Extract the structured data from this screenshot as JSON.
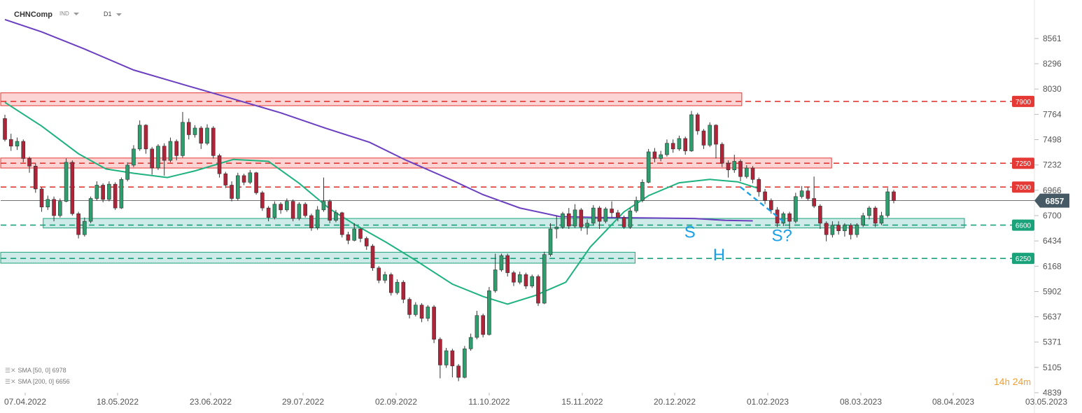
{
  "header": {
    "symbol": "CHNComp",
    "market": "IND",
    "timeframe": "D1"
  },
  "indicators": [
    {
      "label": "SMA [50, 0]",
      "value": "6978",
      "color": "#1eb27f"
    },
    {
      "label": "SMA [200, 0]",
      "value": "6656",
      "color": "#6a3fc0"
    }
  ],
  "timer": {
    "hours": "14",
    "hours_unit": "h",
    "minutes": "24",
    "minutes_unit": "m"
  },
  "chart_data": {
    "type": "candlestick",
    "y_ticks": [
      8561,
      8296,
      8030,
      7764,
      7498,
      7232,
      6966,
      6700,
      6434,
      6168,
      5902,
      5637,
      5371,
      5105,
      4839
    ],
    "x_ticks": [
      "07.04.2022",
      "18.05.2022",
      "23.06.2022",
      "29.07.2022",
      "02.09.2022",
      "11.10.2022",
      "15.11.2022",
      "20.12.2022",
      "01.02.2023",
      "08.03.2023",
      "08.04.2023",
      "03.05.2023"
    ],
    "last_price": {
      "value": "6857",
      "color": "#455a64"
    },
    "resistance_levels": [
      {
        "label": "7900",
        "value": 7900,
        "color": "#e53935"
      },
      {
        "label": "7250",
        "value": 7250,
        "color": "#e53935"
      },
      {
        "label": "7000",
        "value": 7000,
        "color": "#e53935"
      }
    ],
    "support_levels": [
      {
        "label": "6600",
        "value": 6600,
        "color": "#1aa37a"
      },
      {
        "label": "6250",
        "value": 6250,
        "color": "#1aa37a"
      }
    ],
    "zones": [
      {
        "kind": "resistance",
        "y_from": 7855,
        "y_to": 7990,
        "date_from": "07.04.2022",
        "date_to": "20.01.2023"
      },
      {
        "kind": "resistance",
        "y_from": 7200,
        "y_to": 7305,
        "date_from": "07.04.2022",
        "date_to": "25.02.2023"
      },
      {
        "kind": "support",
        "y_from": 6570,
        "y_to": 6670,
        "date_from": "15.04.2022",
        "date_to": "11.04.2023"
      },
      {
        "kind": "support",
        "y_from": 6200,
        "y_to": 6315,
        "date_from": "07.04.2022",
        "date_to": "05.12.2022"
      }
    ],
    "pattern_labels": [
      {
        "text": "S",
        "date": "20.02.2023",
        "value": 6470,
        "color": "#1aa0e8"
      },
      {
        "text": "H",
        "date": "05.03.2023",
        "value": 6230,
        "color": "#1aa0e8"
      },
      {
        "text": "S?",
        "date": "03.04.2023",
        "value": 6430,
        "color": "#1aa0e8"
      }
    ],
    "projection": {
      "from": {
        "date": "15.03.2023",
        "value": 7000
      },
      "to": {
        "date": "04.04.2023",
        "value": 6640
      },
      "color": "#1aa0e8"
    },
    "sma50": [
      [
        "07.04.2022",
        7890
      ],
      [
        "25.04.2022",
        7640
      ],
      [
        "12.05.2022",
        7350
      ],
      [
        "25.05.2022",
        7190
      ],
      [
        "07.06.2022",
        7145
      ],
      [
        "22.06.2022",
        7100
      ],
      [
        "05.07.2022",
        7170
      ],
      [
        "22.07.2022",
        7290
      ],
      [
        "08.08.2022",
        7270
      ],
      [
        "22.08.2022",
        7040
      ],
      [
        "05.09.2022",
        6770
      ],
      [
        "16.09.2022",
        6600
      ],
      [
        "30.09.2022",
        6420
      ],
      [
        "14.10.2022",
        6230
      ],
      [
        "01.11.2022",
        5980
      ],
      [
        "15.11.2022",
        5850
      ],
      [
        "25.11.2022",
        5770
      ],
      [
        "08.12.2022",
        5860
      ],
      [
        "22.12.2022",
        6000
      ],
      [
        "05.01.2023",
        6370
      ],
      [
        "20.01.2023",
        6740
      ],
      [
        "01.02.2023",
        6910
      ],
      [
        "15.02.2023",
        7045
      ],
      [
        "01.03.2023",
        7080
      ],
      [
        "14.03.2023",
        7055
      ],
      [
        "23.03.2023",
        6985
      ]
    ],
    "sma200": [
      [
        "07.04.2022",
        8760
      ],
      [
        "25.04.2022",
        8630
      ],
      [
        "16.05.2022",
        8450
      ],
      [
        "07.06.2022",
        8230
      ],
      [
        "30.06.2022",
        8070
      ],
      [
        "20.07.2022",
        7940
      ],
      [
        "12.08.2022",
        7780
      ],
      [
        "02.09.2022",
        7620
      ],
      [
        "22.09.2022",
        7470
      ],
      [
        "11.10.2022",
        7280
      ],
      [
        "01.11.2022",
        7070
      ],
      [
        "15.11.2022",
        6920
      ],
      [
        "01.12.2022",
        6780
      ],
      [
        "20.12.2022",
        6690
      ],
      [
        "10.01.2023",
        6680
      ],
      [
        "01.02.2023",
        6675
      ],
      [
        "22.02.2023",
        6670
      ],
      [
        "08.03.2023",
        6650
      ],
      [
        "21.03.2023",
        6645
      ]
    ],
    "candles": [
      [
        "07.04.2022",
        7720,
        7500,
        7760,
        7480
      ],
      [
        "11.04.2022",
        7500,
        7430,
        7560,
        7380
      ],
      [
        "13.04.2022",
        7430,
        7480,
        7520,
        7390
      ],
      [
        "15.04.2022",
        7480,
        7300,
        7500,
        7260
      ],
      [
        "19.04.2022",
        7300,
        7220,
        7320,
        7150
      ],
      [
        "21.04.2022",
        7220,
        6980,
        7250,
        6940
      ],
      [
        "25.04.2022",
        6980,
        6790,
        7000,
        6740
      ],
      [
        "27.04.2022",
        6790,
        6870,
        6910,
        6760
      ],
      [
        "29.04.2022",
        6870,
        6700,
        6900,
        6640
      ],
      [
        "04.05.2022",
        6700,
        6850,
        6880,
        6680
      ],
      [
        "06.05.2022",
        6850,
        7260,
        7300,
        6840
      ],
      [
        "10.05.2022",
        7260,
        6720,
        7280,
        6700
      ],
      [
        "12.05.2022",
        6720,
        6500,
        6740,
        6460
      ],
      [
        "16.05.2022",
        6500,
        6640,
        6680,
        6480
      ],
      [
        "18.05.2022",
        6640,
        6880,
        6900,
        6620
      ],
      [
        "20.05.2022",
        6880,
        7020,
        7060,
        6860
      ],
      [
        "24.05.2022",
        7020,
        6870,
        7040,
        6840
      ],
      [
        "26.05.2022",
        6870,
        7030,
        7060,
        6850
      ],
      [
        "30.05.2022",
        7030,
        6780,
        7050,
        6760
      ],
      [
        "01.06.2022",
        6780,
        7080,
        7100,
        6770
      ],
      [
        "03.06.2022",
        7080,
        7230,
        7260,
        7060
      ],
      [
        "07.06.2022",
        7230,
        7400,
        7440,
        7210
      ],
      [
        "09.06.2022",
        7400,
        7650,
        7700,
        7380
      ],
      [
        "13.06.2022",
        7650,
        7400,
        7660,
        7350
      ],
      [
        "15.06.2022",
        7400,
        7200,
        7420,
        7130
      ],
      [
        "17.06.2022",
        7200,
        7430,
        7450,
        7180
      ],
      [
        "21.06.2022",
        7430,
        7280,
        7460,
        7120
      ],
      [
        "23.06.2022",
        7280,
        7480,
        7520,
        7260
      ],
      [
        "27.06.2022",
        7480,
        7330,
        7500,
        7280
      ],
      [
        "29.06.2022",
        7330,
        7680,
        7790,
        7310
      ],
      [
        "01.07.2022",
        7680,
        7550,
        7720,
        7500
      ],
      [
        "05.07.2022",
        7550,
        7620,
        7650,
        7520
      ],
      [
        "07.07.2022",
        7620,
        7460,
        7640,
        7400
      ],
      [
        "11.07.2022",
        7460,
        7620,
        7660,
        7440
      ],
      [
        "13.07.2022",
        7620,
        7330,
        7640,
        7300
      ],
      [
        "15.07.2022",
        7330,
        7140,
        7350,
        7100
      ],
      [
        "19.07.2022",
        7140,
        7020,
        7160,
        6990
      ],
      [
        "21.07.2022",
        7020,
        6880,
        7060,
        6850
      ],
      [
        "25.07.2022",
        6880,
        7120,
        7150,
        6860
      ],
      [
        "27.07.2022",
        7120,
        7050,
        7140,
        7020
      ],
      [
        "29.07.2022",
        7050,
        7150,
        7180,
        7030
      ],
      [
        "02.08.2022",
        7150,
        6940,
        7160,
        6920
      ],
      [
        "04.08.2022",
        6940,
        6780,
        6960,
        6750
      ],
      [
        "08.08.2022",
        6780,
        6680,
        6800,
        6640
      ],
      [
        "10.08.2022",
        6680,
        6820,
        6850,
        6660
      ],
      [
        "12.08.2022",
        6820,
        6760,
        6840,
        6720
      ],
      [
        "16.08.2022",
        6760,
        6850,
        6880,
        6740
      ],
      [
        "18.08.2022",
        6850,
        6670,
        6870,
        6640
      ],
      [
        "22.08.2022",
        6670,
        6820,
        6840,
        6650
      ],
      [
        "24.08.2022",
        6820,
        6700,
        6840,
        6680
      ],
      [
        "26.08.2022",
        6700,
        6570,
        6720,
        6540
      ],
      [
        "30.08.2022",
        6570,
        6760,
        6800,
        6550
      ],
      [
        "01.09.2022",
        6760,
        6850,
        7100,
        6740
      ],
      [
        "05.09.2022",
        6850,
        6650,
        6870,
        6620
      ],
      [
        "07.09.2022",
        6650,
        6730,
        6760,
        6630
      ],
      [
        "09.09.2022",
        6730,
        6500,
        6740,
        6470
      ],
      [
        "13.09.2022",
        6500,
        6440,
        6530,
        6400
      ],
      [
        "15.09.2022",
        6440,
        6560,
        6620,
        6430
      ],
      [
        "19.09.2022",
        6560,
        6460,
        6570,
        6420
      ],
      [
        "21.09.2022",
        6460,
        6380,
        6480,
        6340
      ],
      [
        "23.09.2022",
        6380,
        6150,
        6400,
        6120
      ],
      [
        "27.09.2022",
        6150,
        6020,
        6170,
        5990
      ],
      [
        "29.09.2022",
        6020,
        6080,
        6110,
        5990
      ],
      [
        "04.10.2022",
        6080,
        5890,
        6100,
        5860
      ],
      [
        "06.10.2022",
        5890,
        6000,
        6030,
        5870
      ],
      [
        "10.10.2022",
        6000,
        5820,
        6020,
        5780
      ],
      [
        "12.10.2022",
        5820,
        5660,
        5840,
        5620
      ],
      [
        "14.10.2022",
        5660,
        5760,
        5790,
        5640
      ],
      [
        "18.10.2022",
        5760,
        5620,
        5780,
        5580
      ],
      [
        "20.10.2022",
        5620,
        5740,
        5760,
        5590
      ],
      [
        "24.10.2022",
        5740,
        5400,
        5760,
        5360
      ],
      [
        "26.10.2022",
        5400,
        5130,
        5420,
        4990
      ],
      [
        "28.10.2022",
        5130,
        5280,
        5310,
        5100
      ],
      [
        "01.11.2022",
        5280,
        5120,
        5300,
        5000
      ],
      [
        "03.11.2022",
        5120,
        5000,
        5140,
        4960
      ],
      [
        "07.11.2022",
        5000,
        5300,
        5330,
        4990
      ],
      [
        "09.11.2022",
        5300,
        5420,
        5460,
        5280
      ],
      [
        "11.11.2022",
        5420,
        5650,
        5700,
        5400
      ],
      [
        "15.11.2022",
        5650,
        5450,
        5670,
        5420
      ],
      [
        "17.11.2022",
        5450,
        5910,
        5950,
        5440
      ],
      [
        "21.11.2022",
        5910,
        6130,
        6300,
        5890
      ],
      [
        "23.11.2022",
        6130,
        6280,
        6300,
        6110
      ],
      [
        "25.11.2022",
        6280,
        6100,
        6300,
        6060
      ],
      [
        "29.11.2022",
        6100,
        6000,
        6120,
        5960
      ],
      [
        "01.12.2022",
        6000,
        6080,
        6110,
        5980
      ],
      [
        "05.12.2022",
        6080,
        5960,
        6100,
        5930
      ],
      [
        "07.12.2022",
        5960,
        6060,
        6080,
        5940
      ],
      [
        "09.12.2022",
        6060,
        5780,
        6080,
        5750
      ],
      [
        "13.12.2022",
        5780,
        6290,
        6320,
        5770
      ],
      [
        "15.12.2022",
        6290,
        6560,
        6620,
        6270
      ],
      [
        "19.12.2022",
        6560,
        6580,
        6700,
        6460
      ],
      [
        "21.12.2022",
        6580,
        6720,
        6740,
        6560
      ],
      [
        "23.12.2022",
        6720,
        6590,
        6780,
        6560
      ],
      [
        "28.12.2022",
        6590,
        6760,
        6820,
        6570
      ],
      [
        "30.12.2022",
        6760,
        6580,
        6780,
        6540
      ],
      [
        "04.01.2023",
        6580,
        6620,
        6660,
        6500
      ],
      [
        "06.01.2023",
        6620,
        6780,
        6810,
        6600
      ],
      [
        "10.01.2023",
        6780,
        6640,
        6800,
        6560
      ],
      [
        "12.01.2023",
        6640,
        6770,
        6790,
        6620
      ],
      [
        "16.01.2023",
        6770,
        6730,
        6850,
        6680
      ],
      [
        "18.01.2023",
        6730,
        6680,
        6760,
        6640
      ],
      [
        "20.01.2023",
        6680,
        6580,
        6700,
        6560
      ],
      [
        "24.01.2023",
        6580,
        6750,
        6780,
        6560
      ],
      [
        "26.01.2023",
        6750,
        6860,
        6900,
        6730
      ],
      [
        "30.01.2023",
        6860,
        7050,
        7080,
        6840
      ],
      [
        "01.02.2023",
        7050,
        7370,
        7400,
        7040
      ],
      [
        "03.02.2023",
        7370,
        7300,
        7410,
        7260
      ],
      [
        "07.02.2023",
        7300,
        7340,
        7380,
        7270
      ],
      [
        "09.02.2023",
        7340,
        7460,
        7500,
        7320
      ],
      [
        "13.02.2023",
        7460,
        7400,
        7500,
        7360
      ],
      [
        "15.02.2023",
        7400,
        7510,
        7540,
        7380
      ],
      [
        "17.02.2023",
        7510,
        7380,
        7530,
        7340
      ],
      [
        "21.02.2023",
        7380,
        7760,
        7800,
        7370
      ],
      [
        "23.02.2023",
        7760,
        7590,
        7780,
        7550
      ],
      [
        "27.02.2023",
        7590,
        7440,
        7610,
        7400
      ],
      [
        "01.03.2023",
        7440,
        7650,
        7680,
        7420
      ],
      [
        "03.03.2023",
        7650,
        7450,
        7660,
        7300
      ],
      [
        "07.03.2023",
        7450,
        7250,
        7470,
        7210
      ],
      [
        "09.03.2023",
        7250,
        7180,
        7280,
        7100
      ],
      [
        "13.03.2023",
        7180,
        7270,
        7340,
        7150
      ],
      [
        "15.03.2023",
        7270,
        7110,
        7290,
        7060
      ],
      [
        "17.03.2023",
        7110,
        7200,
        7230,
        7090
      ],
      [
        "21.03.2023",
        7200,
        7080,
        7220,
        7040
      ],
      [
        "23.03.2023",
        7080,
        6950,
        7100,
        6900
      ],
      [
        "27.03.2023",
        6950,
        6860,
        6980,
        6820
      ],
      [
        "29.03.2023",
        6860,
        6760,
        6880,
        6720
      ],
      [
        "31.03.2023",
        6760,
        6620,
        6790,
        6580
      ],
      [
        "04.04.2023",
        6620,
        6720,
        6740,
        6590
      ],
      [
        "06.04.2023",
        6720,
        6640,
        6740,
        6560
      ],
      [
        "10.04.2023",
        6640,
        6900,
        6940,
        6620
      ],
      [
        "12.04.2023",
        6900,
        6960,
        7010,
        6880
      ],
      [
        "14.04.2023",
        6960,
        6880,
        7000,
        6860
      ],
      [
        "18.04.2023",
        6880,
        6800,
        7110,
        6780
      ],
      [
        "20.04.2023",
        6800,
        6620,
        6820,
        6560
      ],
      [
        "24.04.2023",
        6620,
        6500,
        6640,
        6430
      ],
      [
        "26.04.2023",
        6500,
        6600,
        6640,
        6470
      ],
      [
        "28.04.2023",
        6600,
        6540,
        6640,
        6500
      ],
      [
        "02.05.2023",
        6540,
        6600,
        6620,
        6480
      ],
      [
        "04.05.2023",
        6600,
        6500,
        6620,
        6450
      ],
      [
        "08.05.2023",
        6500,
        6600,
        6620,
        6470
      ],
      [
        "10.05.2023",
        6600,
        6700,
        6730,
        6580
      ],
      [
        "12.05.2023",
        6700,
        6780,
        6800,
        6660
      ],
      [
        "16.05.2023",
        6780,
        6620,
        6800,
        6580
      ],
      [
        "18.05.2023",
        6620,
        6700,
        6740,
        6600
      ],
      [
        "22.05.2023",
        6700,
        6950,
        6990,
        6680
      ],
      [
        "24.05.2023",
        6950,
        6857,
        6970,
        6830
      ]
    ]
  }
}
